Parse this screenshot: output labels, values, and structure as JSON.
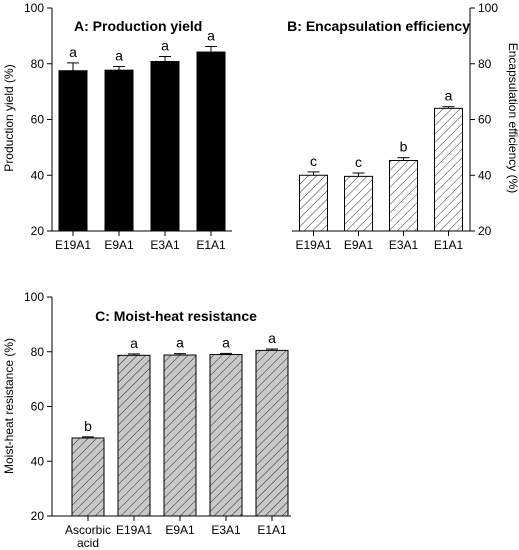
{
  "chart_data": [
    {
      "id": "A",
      "type": "bar",
      "title": "A: Production yield",
      "ylabel": "Production yield (%)",
      "ylim": [
        20,
        100
      ],
      "yticks": [
        20,
        40,
        60,
        80,
        100
      ],
      "categories": [
        "E19A1",
        "E9A1",
        "E3A1",
        "E1A1"
      ],
      "values": [
        77.5,
        77.7,
        80.8,
        84.2
      ],
      "errors": [
        2.8,
        1.3,
        1.8,
        2.0
      ],
      "letters": [
        "a",
        "a",
        "a",
        "a"
      ],
      "fill": "solid",
      "color": "#000000",
      "y_axis_side": "left"
    },
    {
      "id": "B",
      "type": "bar",
      "title": "B: Encapsulation efficiency",
      "ylabel": "Encapsulation efficiency (%)",
      "ylim": [
        20,
        100
      ],
      "yticks": [
        20,
        40,
        60,
        80,
        100
      ],
      "categories": [
        "E19A1",
        "E9A1",
        "E3A1",
        "E1A1"
      ],
      "values": [
        40.0,
        39.6,
        45.3,
        64.0
      ],
      "errors": [
        1.2,
        1.2,
        1.0,
        0.6
      ],
      "letters": [
        "c",
        "c",
        "b",
        "a"
      ],
      "fill": "hatched",
      "color": "#ffffff",
      "y_axis_side": "right"
    },
    {
      "id": "C",
      "type": "bar",
      "title": "C: Moist-heat resistance",
      "ylabel": "Moist-heat resistance (%)",
      "ylim": [
        20,
        100
      ],
      "yticks": [
        20,
        40,
        60,
        80,
        100
      ],
      "categories": [
        [
          "Ascorbic",
          "acid"
        ],
        [
          "E19A1"
        ],
        [
          "E9A1"
        ],
        [
          "E3A1"
        ],
        [
          "E1A1"
        ]
      ],
      "values": [
        48.5,
        78.7,
        78.8,
        79.0,
        80.5
      ],
      "errors": [
        0.4,
        0.5,
        0.5,
        0.4,
        0.5
      ],
      "letters": [
        "b",
        "a",
        "a",
        "a",
        "a"
      ],
      "fill": "hatched",
      "color": "#c8c8c8",
      "y_axis_side": "left"
    }
  ]
}
